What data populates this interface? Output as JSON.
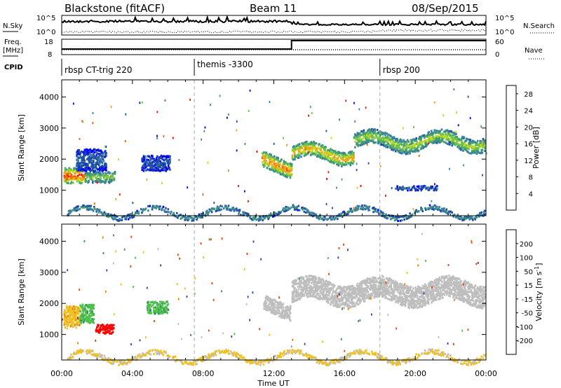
{
  "header": {
    "title": "Blackstone (fitACF)",
    "beam": "Beam 11",
    "date": "08/Sep/2015"
  },
  "nsky_panel": {
    "left_label": "N.Sky",
    "left_ticks": [
      "10^5",
      "10^0"
    ],
    "right_label": "N.Search",
    "right_ticks": [
      "10^5",
      "10^0"
    ]
  },
  "freq_panel": {
    "left_label_1": "Freq.",
    "left_label_2": "[MHz]",
    "left_ticks": [
      "18",
      "8"
    ],
    "right_label": "Nave",
    "right_ticks": [
      "60",
      "0"
    ]
  },
  "cpid": {
    "label": "CPID",
    "segments": [
      {
        "name": "rbsp CT-trig 220",
        "start_hour": 0
      },
      {
        "name": "themis -3300",
        "start_hour": 7.5
      },
      {
        "name": "rbsp 200",
        "start_hour": 18
      }
    ]
  },
  "colors": {
    "power": [
      "#0000ff",
      "#1f4ea8",
      "#3a7fa0",
      "#3f9e6a",
      "#6cc04a",
      "#c8d820",
      "#f0a010",
      "#f06000",
      "#e82000",
      "#ff0000"
    ],
    "velocity": [
      "#0000ff",
      "#2a3fb0",
      "#3a8f5a",
      "#4cc24c",
      "#bebebe",
      "#f0c020",
      "#f08000",
      "#f04000",
      "#ff0000"
    ],
    "ground_scatter": "#bebebe"
  },
  "chart_data": [
    {
      "type": "heatmap",
      "name": "power",
      "xlabel": "Time UT",
      "ylabel": "Slant Range [km]",
      "x_ticks": [
        "00:00",
        "04:00",
        "08:00",
        "12:00",
        "16:00",
        "20:00",
        "00:00"
      ],
      "y_ticks": [
        "1000",
        "2000",
        "3000",
        "4000"
      ],
      "xlim": [
        0,
        24
      ],
      "ylim": [
        180,
        4550
      ],
      "colorbar_label": "Power [dB]",
      "colorbar_ticks": [
        "4",
        "8",
        "12",
        "16",
        "20",
        "24",
        "28"
      ],
      "colorbar_range": [
        0,
        30
      ],
      "features": [
        {
          "t_start": 0.1,
          "t_end": 1.3,
          "r_center": 1500,
          "r_width": 500,
          "value": 25
        },
        {
          "t_start": 1.3,
          "t_end": 3.0,
          "r_center": 1450,
          "r_width": 350,
          "value": 15
        },
        {
          "t_start": 0.8,
          "t_end": 2.5,
          "r_center": 2000,
          "r_width": 700,
          "value": 6
        },
        {
          "t_start": 4.5,
          "t_end": 6.1,
          "r_center": 1900,
          "r_width": 500,
          "value": 5
        },
        {
          "t_start": 11.3,
          "t_end": 13.0,
          "r_center": 1650,
          "r_width": 500,
          "value": 22
        },
        {
          "t_start": 13.0,
          "t_end": 16.5,
          "r_center": 2200,
          "r_width": 450,
          "value": 20
        },
        {
          "t_start": 16.5,
          "t_end": 23.9,
          "r_center": 2600,
          "r_width": 450,
          "value": 16
        },
        {
          "t_start": 18.8,
          "t_end": 21.2,
          "r_center": 1100,
          "r_width": 150,
          "value": 6
        },
        {
          "t_start": 0.3,
          "t_end": 23.9,
          "r_center": 300,
          "r_width": 150,
          "value": 10
        }
      ]
    },
    {
      "type": "heatmap",
      "name": "velocity",
      "xlabel": "Time UT",
      "ylabel": "Slant Range [km]",
      "x_ticks": [
        "00:00",
        "04:00",
        "08:00",
        "12:00",
        "16:00",
        "20:00",
        "00:00"
      ],
      "y_ticks": [
        "1000",
        "2000",
        "3000",
        "4000"
      ],
      "xlim": [
        0,
        24
      ],
      "ylim": [
        180,
        4550
      ],
      "colorbar_label": "Velocity [m s^-1]",
      "colorbar_ticks": [
        "200",
        "100",
        "50",
        "15",
        "-15",
        "-50",
        "-100",
        "-200"
      ],
      "features": [
        {
          "t_start": 0.1,
          "t_end": 1.0,
          "r_center": 1600,
          "r_width": 700,
          "value": -40
        },
        {
          "t_start": 1.0,
          "t_end": 1.8,
          "r_center": 1700,
          "r_width": 600,
          "value": 40
        },
        {
          "t_start": 1.9,
          "t_end": 2.9,
          "r_center": 1200,
          "r_width": 300,
          "value": -220
        },
        {
          "t_start": 4.8,
          "t_end": 6.0,
          "r_center": 1900,
          "r_width": 400,
          "value": 40
        },
        {
          "t_start": 11.4,
          "t_end": 12.9,
          "r_center": 1700,
          "r_width": 500,
          "value": 0
        },
        {
          "t_start": 13.0,
          "t_end": 23.9,
          "r_center": 2400,
          "r_width": 700,
          "value": 0
        },
        {
          "t_start": 0.3,
          "t_end": 23.9,
          "r_center": 300,
          "r_width": 150,
          "value": -20
        }
      ]
    }
  ]
}
